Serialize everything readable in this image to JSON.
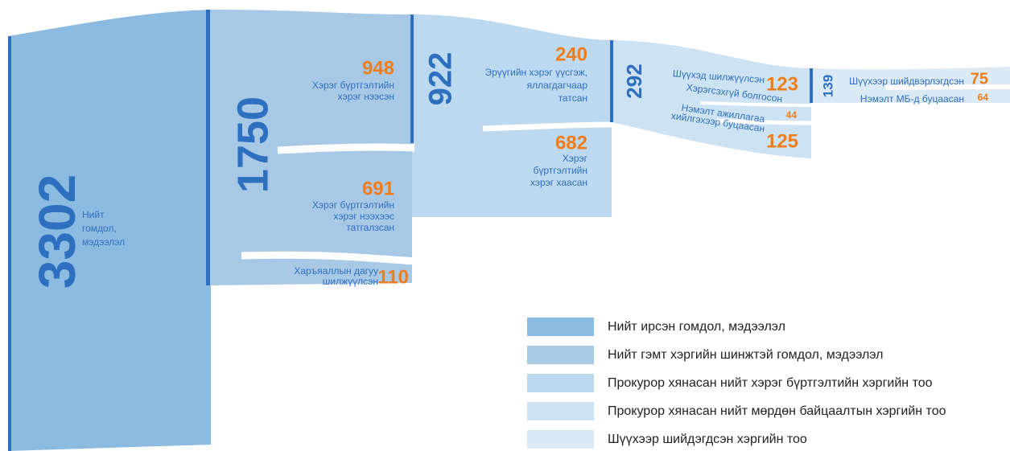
{
  "nodes": [
    {
      "value": 3302,
      "label_lines": [
        "Нийт",
        "гомдол,",
        "мэдээлэл"
      ]
    },
    {
      "value": 1750
    },
    {
      "value": 948,
      "label_lines": [
        "Хэрэг бүртгэлтийн",
        "хэрэг нээсэн"
      ]
    },
    {
      "value": 691,
      "label_lines": [
        "Хэрэг бүртгэлтийн",
        "хэрэг нээхээс",
        "татгалзсан"
      ]
    },
    {
      "value": 110,
      "label_lines": [
        "Харъяаллын дагуу",
        "шилжүүлсэн"
      ]
    },
    {
      "value": 922
    },
    {
      "value": 240,
      "label_lines": [
        "Эрүүгийн хэрэг үүсгэж,",
        "яллагдагчаар",
        "татсан"
      ]
    },
    {
      "value": 682,
      "label_lines": [
        "Хэрэг",
        "бүртгэлтийн",
        "хэрэг хаасан"
      ]
    },
    {
      "value": 292
    },
    {
      "value": 123,
      "label_lines": [
        "Шүүхэд шилжүүлсэн"
      ]
    },
    {
      "value": 44,
      "label_lines": [
        "Хэрэгсэхгүй болгосон"
      ]
    },
    {
      "value": 125,
      "label_lines": [
        "Нэмэлт ажиллагаа",
        "хийлгэхээр буцаасан"
      ]
    },
    {
      "value": 139
    },
    {
      "value": 75,
      "label_lines": [
        "Шүүхээр шийдвэрлэгдсэн"
      ]
    },
    {
      "value": 64,
      "label_lines": [
        "Нэмэлт МБ-д буцаасан"
      ]
    }
  ],
  "legend": [
    "Нийт ирсэн гомдол, мэдээлэл",
    "Нийт гэмт хэргийн шинжтэй гомдол, мэдээлэл",
    "Прокурор хянасан нийт хэрэг бүртгэлтийн хэргийн тоо",
    "Прокурор хянасан нийт мөрдөн байцаалтын хэргийн тоо",
    "Шүүхээр шийдэгдсэн хэргийн тоо"
  ]
}
